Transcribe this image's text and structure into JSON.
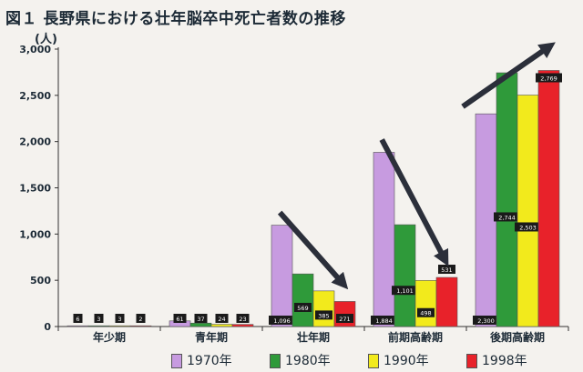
{
  "title": "図１ 長野県における壮年脳卒中死亡者数の推移",
  "unit_label": "(人)",
  "chart_data": {
    "type": "bar",
    "title": "図１ 長野県における壮年脳卒中死亡者数の推移",
    "xlabel": "",
    "ylabel": "(人)",
    "ylim": [
      0,
      3000
    ],
    "yticks": [
      "0",
      "500",
      "1,000",
      "1,500",
      "2,000",
      "2,500",
      "3,000"
    ],
    "grid": false,
    "legend_position": "bottom",
    "categories": [
      "年少期",
      "青年期",
      "壮年期",
      "前期高齢期",
      "後期高齢期"
    ],
    "series": [
      {
        "name": "1970年",
        "color": "#c79be0",
        "values": [
          6,
          61,
          1096,
          1884,
          2300
        ],
        "labels": [
          "6",
          "61",
          "1,096",
          "1,884",
          "2,300"
        ]
      },
      {
        "name": "1980年",
        "color": "#2f9a3a",
        "values": [
          3,
          37,
          569,
          1101,
          2744
        ],
        "labels": [
          "3",
          "37",
          "569",
          "1,101",
          "2,744"
        ]
      },
      {
        "name": "1990年",
        "color": "#f2ea1c",
        "values": [
          3,
          24,
          385,
          498,
          2503
        ],
        "labels": [
          "3",
          "24",
          "385",
          "498",
          "2,503"
        ]
      },
      {
        "name": "1998年",
        "color": "#e8222a",
        "values": [
          2,
          23,
          271,
          531,
          2769
        ],
        "labels": [
          "2",
          "23",
          "271",
          "531",
          "2,769"
        ]
      }
    ],
    "annotations": [
      {
        "type": "arrow",
        "from_category": "壮年期",
        "direction": "down"
      },
      {
        "type": "arrow",
        "from_category": "前期高齢期",
        "direction": "down"
      },
      {
        "type": "arrow",
        "from_category": "後期高齢期",
        "direction": "up"
      }
    ]
  }
}
